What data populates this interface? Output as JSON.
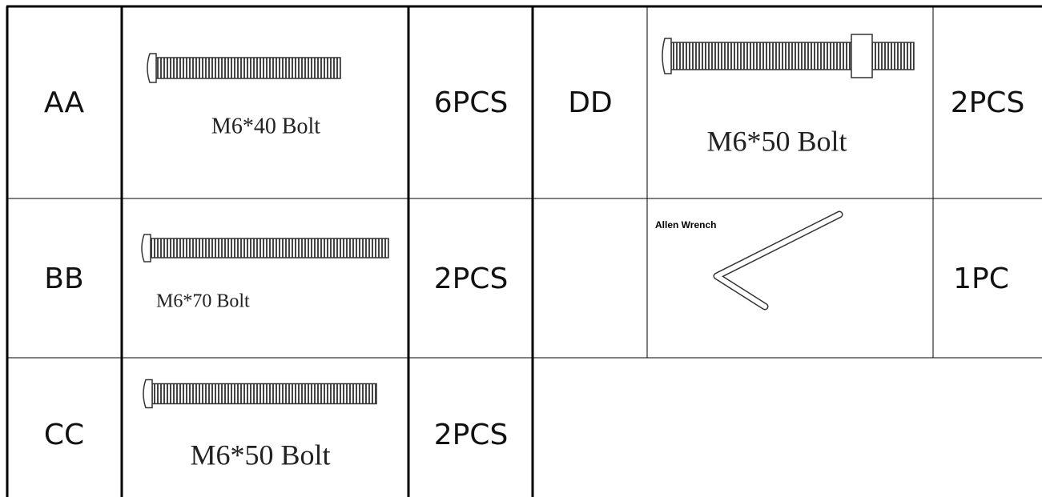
{
  "left": [
    {
      "code": "AA",
      "label": "M6*40 Bolt",
      "qty": "6PCS"
    },
    {
      "code": "BB",
      "label": "M6*70 Bolt",
      "qty": "2PCS"
    },
    {
      "code": "CC",
      "label": "M6*50 Bolt",
      "qty": "2PCS"
    }
  ],
  "right": [
    {
      "code": "DD",
      "label": "M6*50 Bolt",
      "qty": "2PCS"
    },
    {
      "label": "Allen Wrench",
      "qty": "1PC"
    }
  ]
}
